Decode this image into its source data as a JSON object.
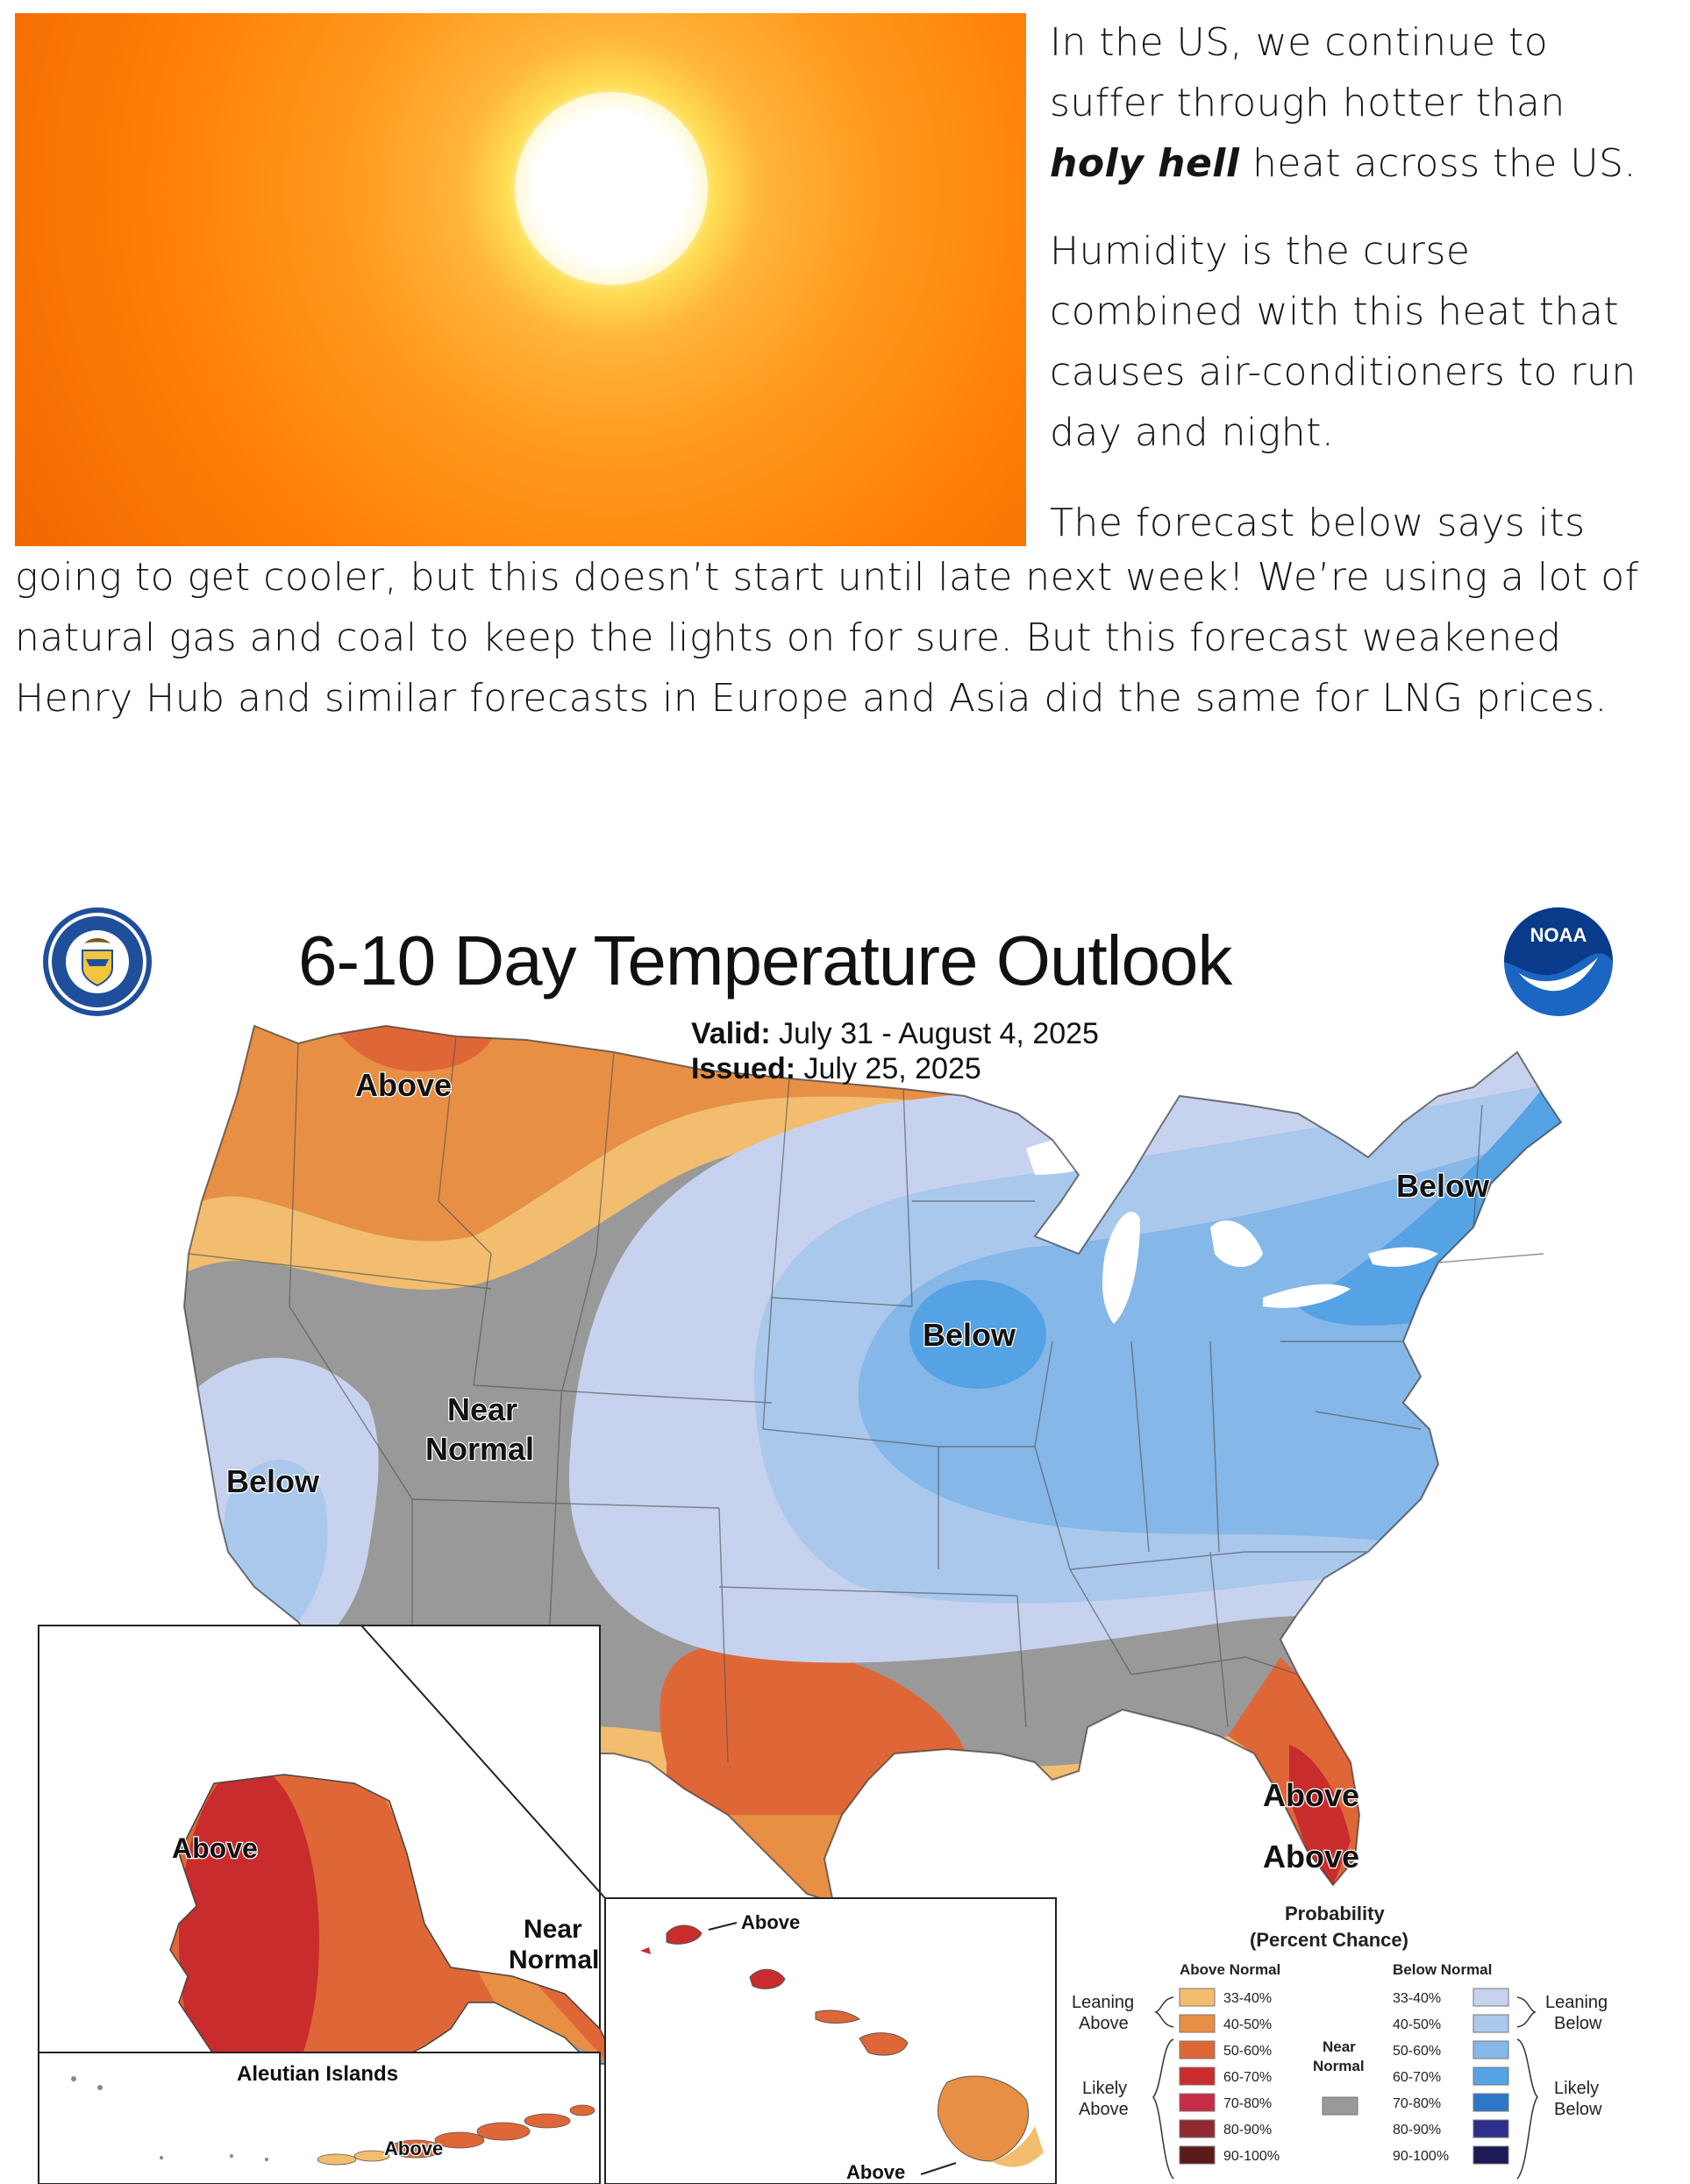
{
  "article": {
    "p1": "In the US, we continue to suffer through hotter than",
    "p1_emph": "holy hell",
    "p1_end": " heat across the US.",
    "p2": "Humidity is the curse combined with this heat that causes air-conditioners to run day and night.",
    "p3": "The forecast below says its",
    "p3_wide": "going to get cooler, but this doesn’t start until late next week! We’re using a lot of natural gas and coal to keep the lights on for sure.  But this forecast weakened Henry Hub and similar forecasts in Europe and Asia did the same for LNG prices."
  },
  "map": {
    "title": "6-10 Day Temperature Outlook",
    "valid_label": "Valid:",
    "valid_value": "July 31 - August 4, 2025",
    "issued_label": "Issued:",
    "issued_value": "July 25, 2025",
    "noaa_text": "NOAA",
    "labels": {
      "above_nw": "Above",
      "below_ne": "Below",
      "below_mw": "Below",
      "near_normal_1": "Near",
      "near_normal_2": "Normal",
      "below_ca": "Below",
      "above_fl": "Above",
      "above_fl2": "Above",
      "above_ak": "Above",
      "near_ak_1": "Near",
      "near_ak_2": "Normal",
      "aleutian_title": "Aleutian Islands",
      "above_aleutian": "Above",
      "above_hi_n": "Above",
      "above_hi_s": "Above"
    },
    "colors": {
      "above_33_40": "#f2bd6e",
      "above_40_50": "#e78f45",
      "above_50_60": "#df6737",
      "above_60_70": "#c92c2c",
      "above_70_80": "#c72b45",
      "above_80_90": "#8e2a30",
      "above_90_100": "#5c1a1a",
      "near_normal": "#999999",
      "below_33_40": "#c7d2ee",
      "below_40_50": "#a9c8ec",
      "below_50_60": "#85b7e8",
      "below_60_70": "#55a2e4",
      "below_70_80": "#2b78c8",
      "below_80_90": "#2e2e8c",
      "below_90_100": "#1b1b55",
      "water": "#ffffff"
    },
    "legend": {
      "title1": "Probability",
      "title2": "(Percent Chance)",
      "above_header": "Above Normal",
      "below_header": "Below Normal",
      "leaning_above_1": "Leaning",
      "leaning_above_2": "Above",
      "likely_above_1": "Likely",
      "likely_above_2": "Above",
      "near_1": "Near",
      "near_2": "Normal",
      "leaning_below_1": "Leaning",
      "leaning_below_2": "Below",
      "likely_below_1": "Likely",
      "likely_below_2": "Below",
      "ranges": [
        "33-40%",
        "40-50%",
        "50-60%",
        "60-70%",
        "70-80%",
        "80-90%",
        "90-100%"
      ]
    }
  }
}
